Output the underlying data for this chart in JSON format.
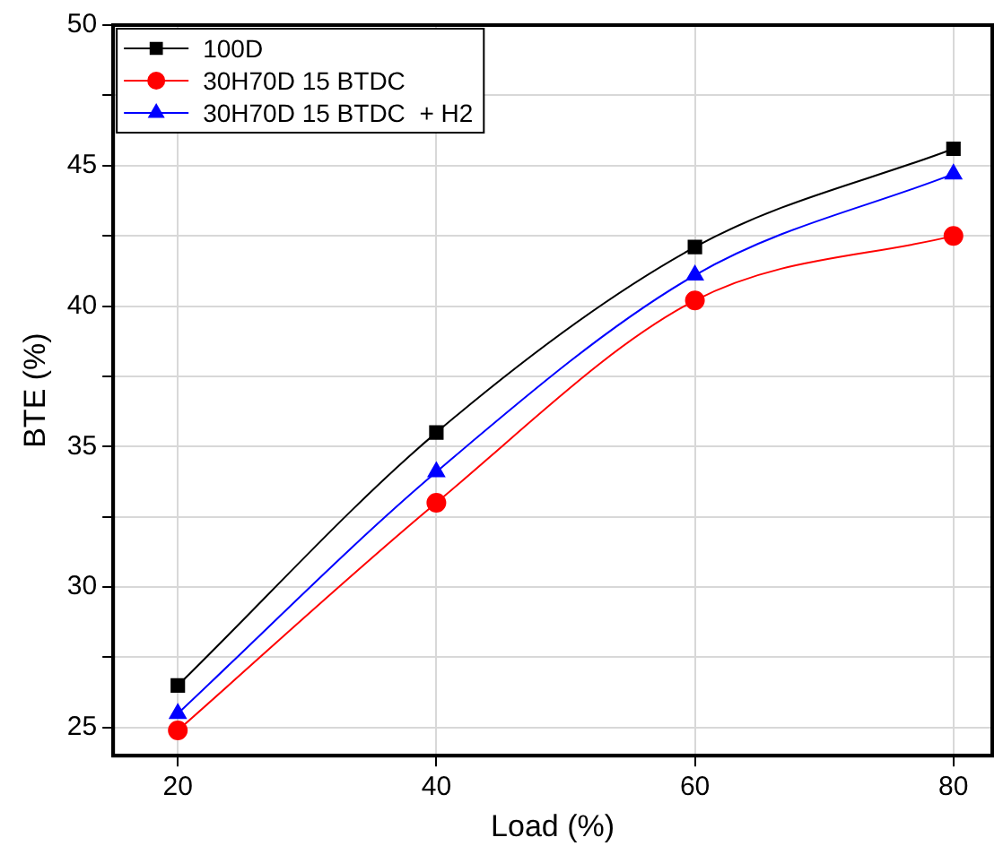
{
  "chart_data": {
    "type": "line",
    "xlabel": "Load (%)",
    "ylabel": "BTE (%)",
    "x": [
      20,
      40,
      60,
      80
    ],
    "series": [
      {
        "name": "100D",
        "color": "#000000",
        "marker": "square",
        "values": [
          26.5,
          35.5,
          42.1,
          45.6
        ]
      },
      {
        "name": "30H70D 15 BTDC",
        "color": "#ff0000",
        "marker": "circle",
        "values": [
          24.9,
          33.0,
          40.2,
          42.5
        ]
      },
      {
        "name": "30H70D 15 BTDC  + H2",
        "color": "#0000ff",
        "marker": "triangle",
        "values": [
          25.5,
          34.1,
          41.1,
          44.7
        ]
      }
    ],
    "xlim": [
      15,
      83
    ],
    "xticks": [
      20,
      40,
      60,
      80
    ],
    "ylim": [
      24,
      50
    ],
    "yticks": [
      25,
      {
        "value": 27.5,
        "label": null
      },
      30,
      {
        "value": 32.5,
        "label": null
      },
      35,
      {
        "value": 37.5,
        "label": null
      },
      40,
      {
        "value": 42.5,
        "label": null
      },
      45,
      {
        "value": 47.5,
        "label": null
      },
      50
    ],
    "grid": true,
    "legend": "top left"
  }
}
